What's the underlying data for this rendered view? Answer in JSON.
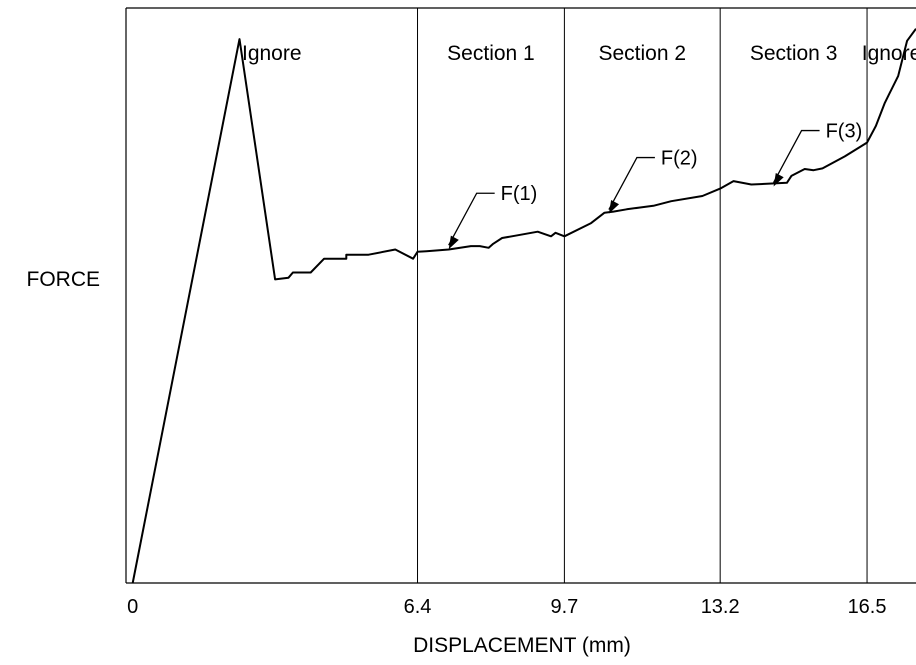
{
  "chart_data": {
    "type": "line",
    "title": "",
    "xlabel": "DISPLACEMENT (mm)",
    "ylabel": "FORCE",
    "x_ticks": [
      "0",
      "6.4",
      "9.7",
      "13.2",
      "16.5"
    ],
    "x_tick_values": [
      0,
      6.4,
      9.7,
      13.2,
      16.5
    ],
    "xlim": [
      -0.15,
      17.6
    ],
    "ylim": [
      0,
      100
    ],
    "y_ticks": [],
    "grid": false,
    "legend": "none",
    "section_boundaries": [
      6.4,
      9.7,
      13.2,
      16.5
    ],
    "regions": [
      {
        "label": "Ignore",
        "x_start": -0.15,
        "x_end": 6.4
      },
      {
        "label": "Section 1",
        "x_start": 6.4,
        "x_end": 9.7
      },
      {
        "label": "Section 2",
        "x_start": 9.7,
        "x_end": 13.2
      },
      {
        "label": "Section 3",
        "x_start": 13.2,
        "x_end": 16.5
      },
      {
        "label": "Ignore",
        "x_start": 16.5,
        "x_end": 17.6
      }
    ],
    "annotations": [
      {
        "text": "F(1)",
        "x": 7.1,
        "y": 57.7
      },
      {
        "text": "F(2)",
        "x": 10.7,
        "y": 63.9
      },
      {
        "text": "F(3)",
        "x": 14.4,
        "y": 68.6
      }
    ],
    "series": [
      {
        "x": [
          0.0,
          2.4,
          3.2,
          3.5,
          3.6,
          4.0,
          4.3,
          4.3,
          4.8,
          4.8,
          5.3,
          5.9,
          6.3,
          6.4,
          6.6,
          7.1,
          7.6,
          7.8,
          8.0,
          8.1,
          8.3,
          8.6,
          9.1,
          9.4,
          9.5,
          9.7,
          10.3,
          10.6,
          10.8,
          11.1,
          11.4,
          11.7,
          12.1,
          12.8,
          13.2,
          13.5,
          13.9,
          14.7,
          14.8,
          15.1,
          15.3,
          15.5,
          16.0,
          16.5,
          16.7,
          16.9,
          17.2,
          17.4,
          17.6
        ],
        "y": [
          0.0,
          94.6,
          52.8,
          53.1,
          54.0,
          54.0,
          56.4,
          56.4,
          56.4,
          57.1,
          57.1,
          58.0,
          56.4,
          57.6,
          57.7,
          58.0,
          58.6,
          58.6,
          58.3,
          59.0,
          60.0,
          60.4,
          61.1,
          60.3,
          60.9,
          60.3,
          62.6,
          64.4,
          64.6,
          65.0,
          65.3,
          65.6,
          66.4,
          67.3,
          68.6,
          69.9,
          69.3,
          69.6,
          70.8,
          72.0,
          71.8,
          72.1,
          74.2,
          76.6,
          79.5,
          83.5,
          88.2,
          94.3,
          96.4
        ]
      }
    ]
  }
}
